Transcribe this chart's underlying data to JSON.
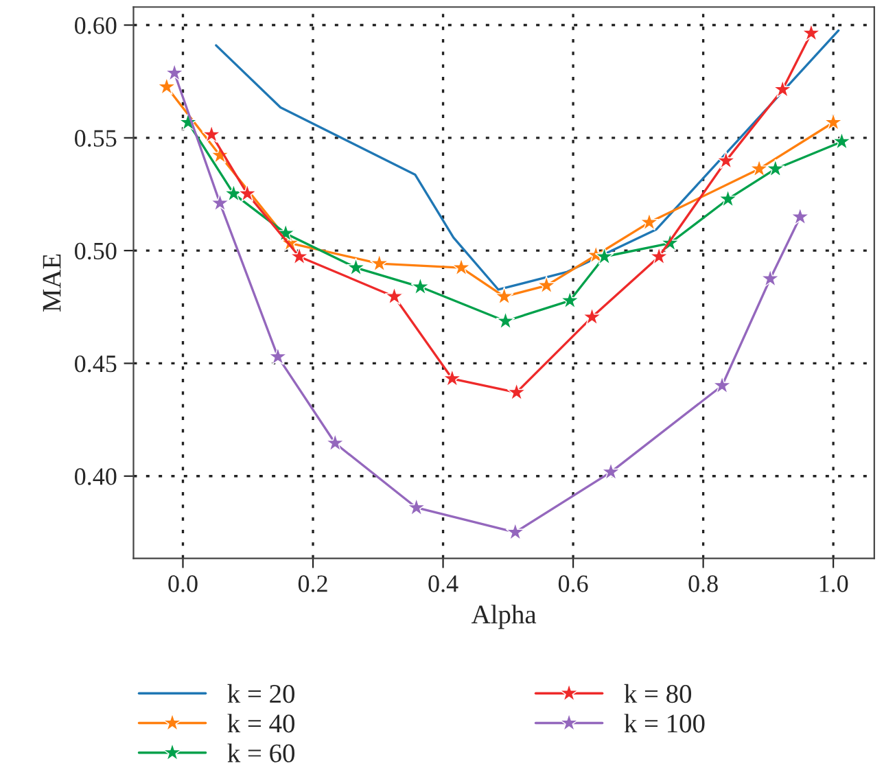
{
  "chart_data": {
    "type": "line",
    "xlabel": "Alpha",
    "ylabel": "MAE",
    "xlim": [
      -0.076,
      1.063
    ],
    "ylim": [
      0.3635,
      0.608
    ],
    "xticks": [
      {
        "value": 0,
        "label": "0.0"
      },
      0.2,
      0.4,
      0.6,
      0.8,
      {
        "value": 1,
        "label": "1.0"
      }
    ],
    "yticks": [
      {
        "value": 0.4,
        "label": "0.40"
      },
      0.45,
      {
        "value": 0.5,
        "label": "0.50"
      },
      0.55,
      {
        "value": 0.6,
        "label": "0.60"
      }
    ],
    "grid": true,
    "legend": "bottom",
    "line_style": "solid",
    "series": [
      {
        "name": "k = 20",
        "color": "#1f77b4",
        "marker": "none",
        "x": [
          0.051,
          0.15,
          0.357,
          0.416,
          0.485,
          0.591,
          0.728,
          1.008
        ],
        "values": [
          0.591,
          0.5635,
          0.5337,
          0.5058,
          0.4827,
          0.4906,
          0.5094,
          0.5976
        ]
      },
      {
        "name": "k = 40",
        "color": "#ff7f0e",
        "marker": "star",
        "x": [
          -0.025,
          0.057,
          0.165,
          0.302,
          0.428,
          0.494,
          0.559,
          0.635,
          0.717,
          0.886,
          1.0
        ],
        "values": [
          0.5726,
          0.5422,
          0.5033,
          0.4942,
          0.4924,
          0.4796,
          0.4845,
          0.4979,
          0.5125,
          0.5362,
          0.5568
        ]
      },
      {
        "name": "k = 60",
        "color": "#00a14b",
        "marker": "star",
        "x": [
          0.008,
          0.078,
          0.158,
          0.266,
          0.365,
          0.496,
          0.595,
          0.648,
          0.749,
          0.838,
          0.911,
          1.013
        ],
        "values": [
          0.5568,
          0.5252,
          0.5076,
          0.4924,
          0.4839,
          0.4687,
          0.4778,
          0.4973,
          0.5033,
          0.5228,
          0.5362,
          0.5483
        ]
      },
      {
        "name": "k = 80",
        "color": "#ee2a2a",
        "marker": "star",
        "x": [
          0.044,
          0.099,
          0.179,
          0.325,
          0.414,
          0.513,
          0.629,
          0.732,
          0.835,
          0.922,
          0.966
        ],
        "values": [
          0.5514,
          0.5252,
          0.4973,
          0.4796,
          0.4432,
          0.4371,
          0.4705,
          0.4973,
          0.5398,
          0.5714,
          0.5964
        ]
      },
      {
        "name": "k = 100",
        "color": "#9467bd",
        "marker": "star",
        "x": [
          -0.013,
          0.057,
          0.146,
          0.234,
          0.359,
          0.511,
          0.658,
          0.829,
          0.903,
          0.949
        ],
        "values": [
          0.5787,
          0.521,
          0.4529,
          0.4146,
          0.386,
          0.3751,
          0.4018,
          0.4401,
          0.4875,
          0.5149
        ]
      }
    ]
  }
}
